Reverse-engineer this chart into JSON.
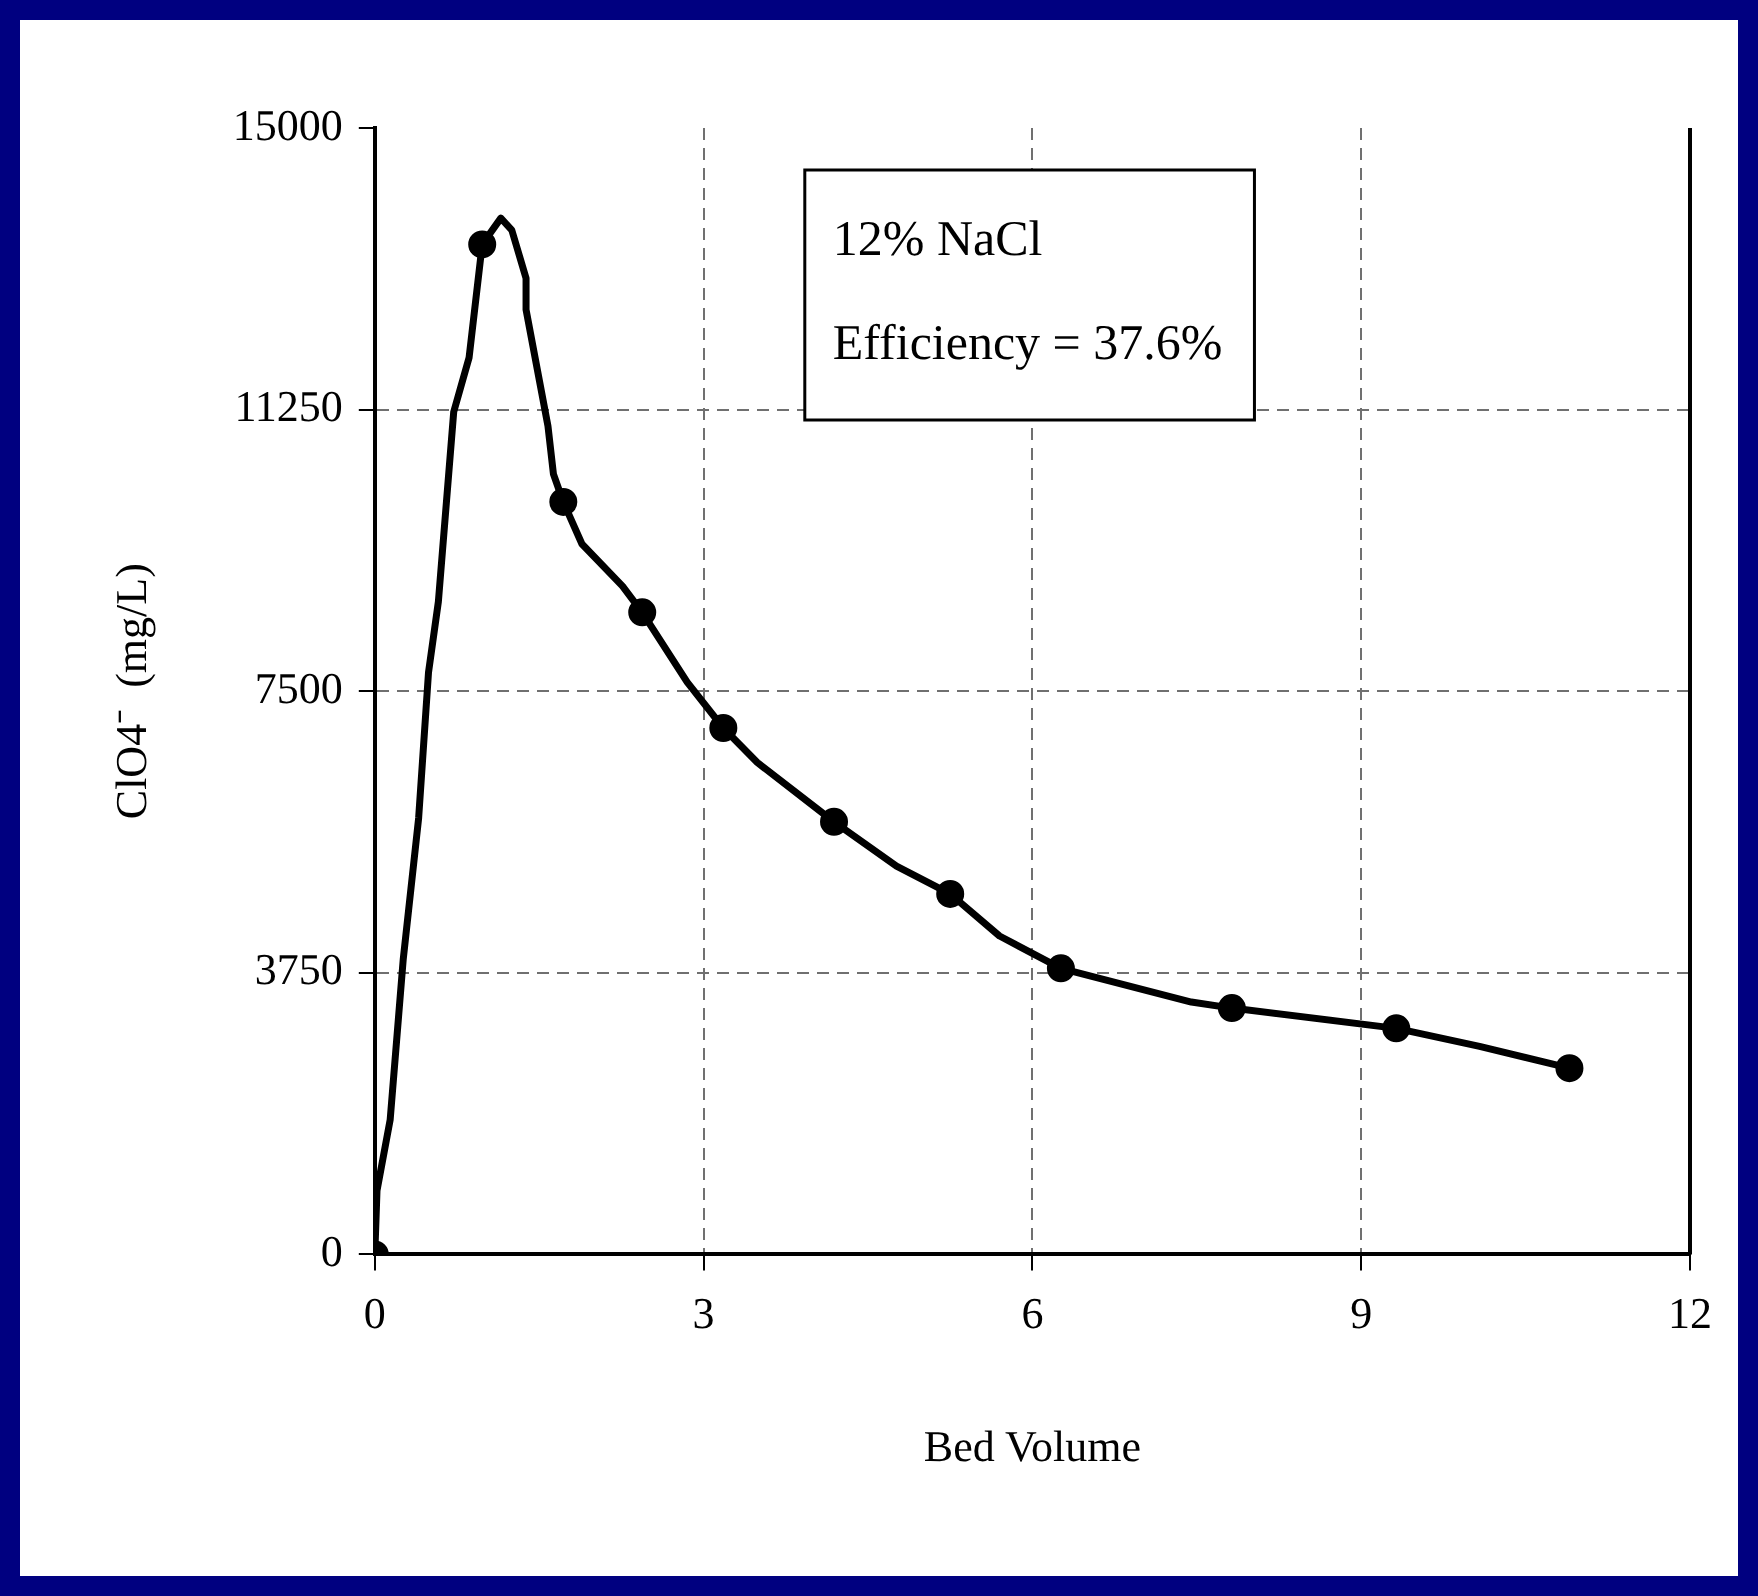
{
  "chart_data": {
    "type": "line",
    "xlabel": "Bed Volume",
    "ylabel": "ClO4⁻  (mg/L)",
    "annotations": [
      "12% NaCl",
      "Efficiency = 37.6%"
    ],
    "xlim": [
      0,
      12
    ],
    "xticks": [
      0,
      3,
      6,
      9,
      12
    ],
    "ylim": [
      0,
      15000
    ],
    "yticks": [
      0,
      3750,
      7500,
      11250,
      15000
    ],
    "grid": true,
    "series": [
      {
        "type": "line",
        "marker": "none",
        "color": "#000000",
        "x": [
          0,
          0.02,
          0.14,
          0.26,
          0.4,
          0.49,
          0.58,
          0.72,
          0.86,
          0.98,
          1.15,
          1.25,
          1.38,
          1.38,
          1.58,
          1.63,
          1.72,
          1.89,
          2.26,
          2.44,
          2.85,
          3.18,
          3.49,
          4.19,
          4.76,
          5.25,
          5.7,
          6.26,
          7.45,
          7.82,
          9.32,
          10.08,
          10.9
        ],
        "values": [
          0,
          850,
          1790,
          3940,
          5810,
          7750,
          8690,
          11220,
          11940,
          13450,
          13800,
          13640,
          13000,
          12580,
          11030,
          10390,
          10020,
          9460,
          8900,
          8550,
          7620,
          7010,
          6550,
          5760,
          5170,
          4800,
          4240,
          3810,
          3360,
          3280,
          3010,
          2770,
          2480
        ]
      },
      {
        "type": "scatter",
        "marker": "circle",
        "color": "#000000",
        "x": [
          0,
          0.98,
          1.72,
          2.44,
          3.18,
          4.19,
          5.25,
          6.26,
          7.82,
          9.32,
          10.9
        ],
        "values": [
          0,
          13450,
          10020,
          8550,
          7010,
          5760,
          4800,
          3810,
          3280,
          3010,
          2480
        ]
      }
    ]
  }
}
